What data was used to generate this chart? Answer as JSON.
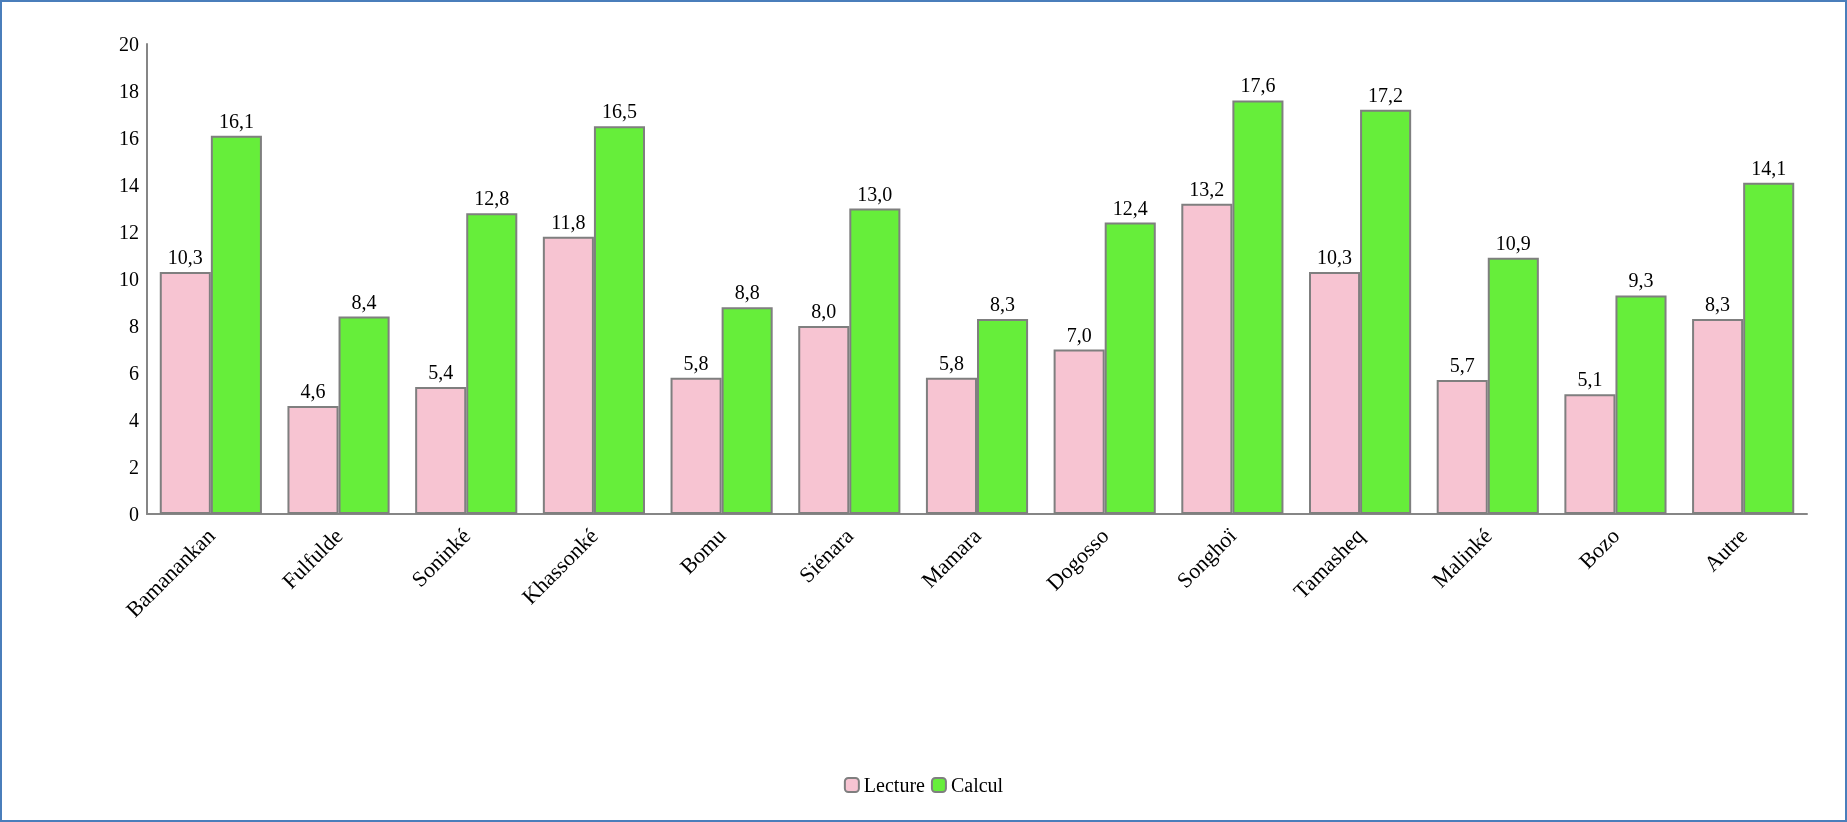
{
  "chart_data": {
    "type": "bar",
    "categories": [
      "Bamanankan",
      "Fulfulde",
      "Soninké",
      "Khassonké",
      "Bomu",
      "Siénara",
      "Mamara",
      "Dogosso",
      "Songhoï",
      "Tamasheq",
      "Malinké",
      "Bozo",
      "Autre"
    ],
    "series": [
      {
        "name": "Lecture",
        "color": "#f7c4d2",
        "values": [
          10.3,
          4.6,
          5.4,
          11.8,
          5.8,
          8.0,
          5.8,
          7.0,
          13.2,
          10.3,
          5.7,
          5.1,
          8.3
        ],
        "value_labels": [
          "10,3",
          "4,6",
          "5,4",
          "11,8",
          "5,8",
          "8,0",
          "5,8",
          "7,0",
          "13,2",
          "10,3",
          "5,7",
          "5,1",
          "8,3"
        ]
      },
      {
        "name": "Calcul",
        "color": "#66ee3a",
        "values": [
          16.1,
          8.4,
          12.8,
          16.5,
          8.8,
          13.0,
          8.3,
          12.4,
          17.6,
          17.2,
          10.9,
          9.3,
          14.1
        ],
        "value_labels": [
          "16,1",
          "8,4",
          "12,8",
          "16,5",
          "8,8",
          "13,0",
          "8,3",
          "12,4",
          "17,6",
          "17,2",
          "10,9",
          "9,3",
          "14,1"
        ]
      }
    ],
    "ylim": [
      0,
      20
    ],
    "yticks": [
      0,
      2,
      4,
      6,
      8,
      10,
      12,
      14,
      16,
      18,
      20
    ],
    "grid": false,
    "legend": "bottom"
  }
}
